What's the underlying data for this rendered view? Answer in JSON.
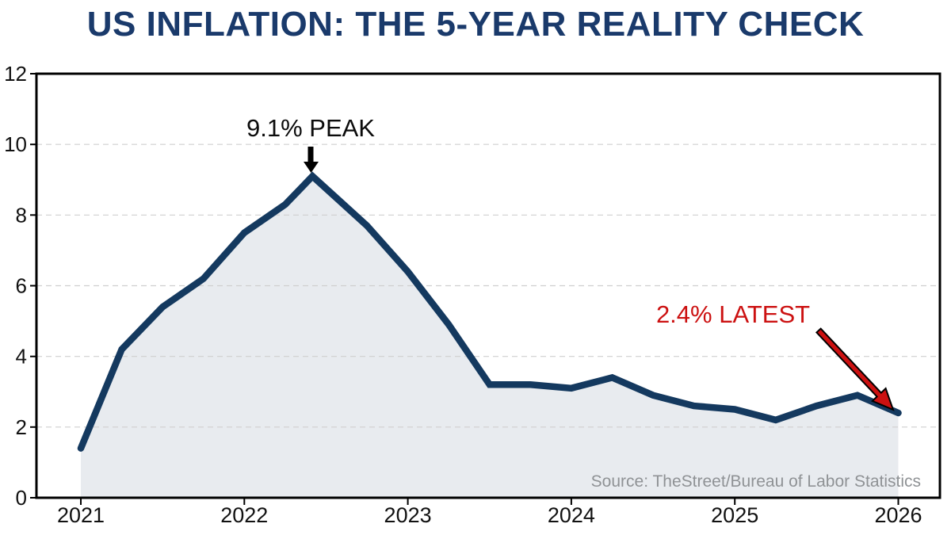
{
  "title": "US INFLATION: THE 5-YEAR REALITY CHECK",
  "source": "Source: TheStreet/Bureau of Labor Statistics",
  "annotations": {
    "peak_label": "9.1% PEAK",
    "latest_label": "2.4% LATEST",
    "peak_point": {
      "x": 2022.417,
      "value": 9.1
    },
    "latest_point": {
      "x": 2026.0,
      "value": 2.4
    }
  },
  "colors": {
    "title": "#1a3a6b",
    "line": "#14395f",
    "area_fill": "#e8ebef",
    "red": "#cc1111",
    "grid": "#cfcfcf",
    "axis": "#000000",
    "tick_text": "#111111",
    "source_text": "#8f9295",
    "peak_arrow": "#000000"
  },
  "chart_data": {
    "type": "area",
    "title": "US INFLATION: THE 5-YEAR REALITY CHECK",
    "xlabel": "",
    "ylabel": "",
    "x": [
      2021.0,
      2021.25,
      2021.5,
      2021.75,
      2022.0,
      2022.25,
      2022.417,
      2022.75,
      2023.0,
      2023.25,
      2023.5,
      2023.75,
      2024.0,
      2024.25,
      2024.5,
      2024.75,
      2025.0,
      2025.25,
      2025.5,
      2025.75,
      2026.0
    ],
    "values": [
      1.4,
      4.2,
      5.4,
      6.2,
      7.5,
      8.3,
      9.1,
      7.7,
      6.4,
      4.9,
      3.2,
      3.2,
      3.1,
      3.4,
      2.9,
      2.6,
      2.5,
      2.2,
      2.6,
      2.9,
      2.4
    ],
    "xtick_values": [
      2021,
      2022,
      2023,
      2024,
      2025,
      2026
    ],
    "xtick_labels": [
      "2021",
      "2022",
      "2023",
      "2024",
      "2025",
      "2026"
    ],
    "ytick_values": [
      0,
      2,
      4,
      6,
      8,
      10,
      12
    ],
    "ytick_labels": [
      "0",
      "2",
      "4",
      "6",
      "8",
      "10",
      "12"
    ],
    "ylim": [
      0,
      12
    ],
    "xlim": [
      2020.73,
      2026.26
    ],
    "grid": "horizontal-dashed",
    "legend": "none"
  }
}
